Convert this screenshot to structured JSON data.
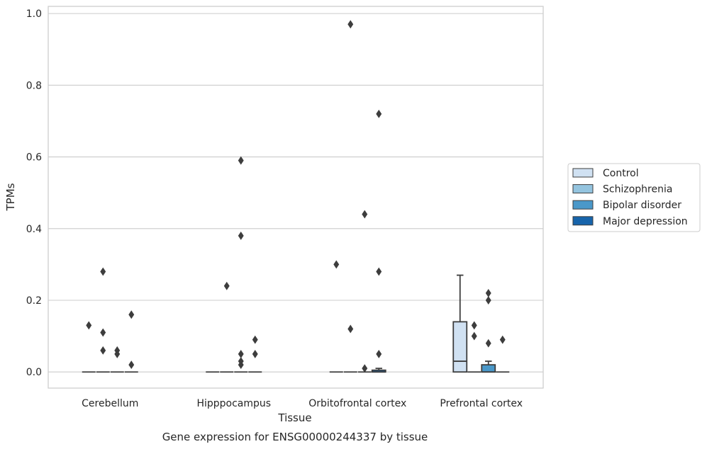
{
  "caption": "Gene expression for ENSG00000244337 by tissue",
  "chart_data": {
    "type": "box",
    "title": "",
    "xlabel": "Tissue",
    "ylabel": "TPMs",
    "ylim": [
      -0.045,
      1.02
    ],
    "yticks": [
      0.0,
      0.2,
      0.4,
      0.6,
      0.8,
      1.0
    ],
    "ytick_labels": [
      "0.0",
      "0.2",
      "0.4",
      "0.6",
      "0.8",
      "1.0"
    ],
    "grid": "horizontal",
    "legend_position": "right",
    "categories": [
      "Cerebellum",
      "Hipppocampus",
      "Orbitofrontal cortex",
      "Prefrontal cortex"
    ],
    "series": [
      {
        "name": "Control",
        "color": "#d0e1f2",
        "boxes": [
          {
            "q1": 0,
            "median": 0,
            "q3": 0,
            "whisker_low": 0,
            "whisker_high": 0,
            "outliers": [
              0.13
            ]
          },
          {
            "q1": 0,
            "median": 0,
            "q3": 0,
            "whisker_low": 0,
            "whisker_high": 0,
            "outliers": []
          },
          {
            "q1": 0,
            "median": 0,
            "q3": 0,
            "whisker_low": 0,
            "whisker_high": 0,
            "outliers": [
              0.3
            ]
          },
          {
            "q1": 0,
            "median": 0.03,
            "q3": 0.14,
            "whisker_low": 0,
            "whisker_high": 0.27,
            "outliers": []
          }
        ]
      },
      {
        "name": "Schizophrenia",
        "color": "#94c4df",
        "boxes": [
          {
            "q1": 0,
            "median": 0,
            "q3": 0,
            "whisker_low": 0,
            "whisker_high": 0,
            "outliers": [
              0.28,
              0.11,
              0.06
            ]
          },
          {
            "q1": 0,
            "median": 0,
            "q3": 0,
            "whisker_low": 0,
            "whisker_high": 0,
            "outliers": [
              0.24
            ]
          },
          {
            "q1": 0,
            "median": 0,
            "q3": 0,
            "whisker_low": 0,
            "whisker_high": 0,
            "outliers": [
              0.97,
              0.12
            ]
          },
          {
            "q1": 0,
            "median": 0,
            "q3": 0,
            "whisker_low": 0,
            "whisker_high": 0,
            "outliers": [
              0.13,
              0.1
            ]
          }
        ]
      },
      {
        "name": "Bipolar disorder",
        "color": "#4a98c9",
        "boxes": [
          {
            "q1": 0,
            "median": 0,
            "q3": 0,
            "whisker_low": 0,
            "whisker_high": 0,
            "outliers": [
              0.06,
              0.05
            ]
          },
          {
            "q1": 0,
            "median": 0,
            "q3": 0,
            "whisker_low": 0,
            "whisker_high": 0,
            "outliers": [
              0.59,
              0.38,
              0.02,
              0.05,
              0.03
            ]
          },
          {
            "q1": 0,
            "median": 0,
            "q3": 0,
            "whisker_low": 0,
            "whisker_high": 0,
            "outliers": [
              0.44,
              0.01
            ]
          },
          {
            "q1": 0,
            "median": 0,
            "q3": 0.02,
            "whisker_low": 0,
            "whisker_high": 0.03,
            "outliers": [
              0.22,
              0.2,
              0.08
            ]
          }
        ]
      },
      {
        "name": "Major depression",
        "color": "#1764ab",
        "boxes": [
          {
            "q1": 0,
            "median": 0,
            "q3": 0,
            "whisker_low": 0,
            "whisker_high": 0,
            "outliers": [
              0.16,
              0.02
            ]
          },
          {
            "q1": 0,
            "median": 0,
            "q3": 0,
            "whisker_low": 0,
            "whisker_high": 0,
            "outliers": [
              0.09,
              0.05
            ]
          },
          {
            "q1": 0,
            "median": 0,
            "q3": 0.005,
            "whisker_low": 0,
            "whisker_high": 0.01,
            "outliers": [
              0.72,
              0.28,
              0.05
            ]
          },
          {
            "q1": 0,
            "median": 0,
            "q3": 0,
            "whisker_low": 0,
            "whisker_high": 0,
            "outliers": [
              0.09
            ]
          }
        ]
      }
    ]
  }
}
